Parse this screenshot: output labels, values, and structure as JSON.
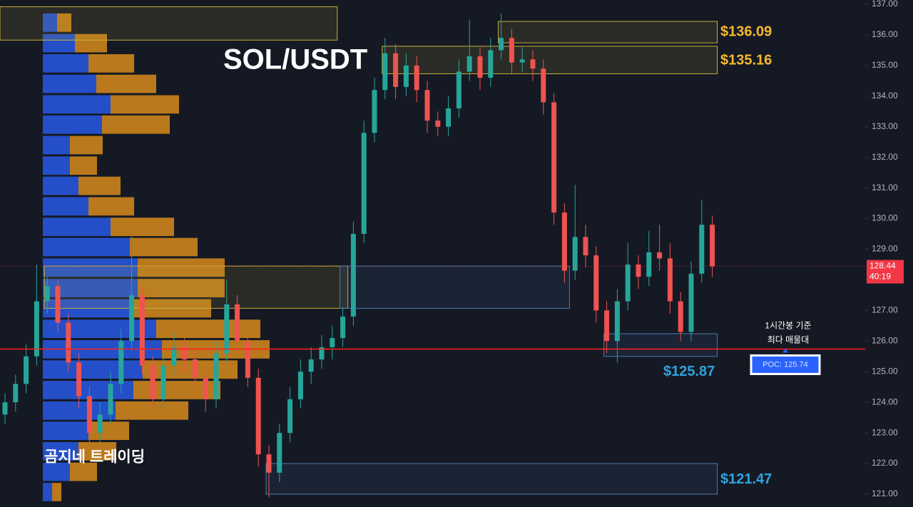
{
  "chart_data": {
    "type": "candlestick",
    "title": "SOL/USDT",
    "watermark": "곰지네 트레이딩",
    "ylim": [
      120.6,
      137.1
    ],
    "yticks": [
      {
        "value": 121,
        "label": "121.00"
      },
      {
        "value": 122,
        "label": "122.00"
      },
      {
        "value": 123,
        "label": "123.00"
      },
      {
        "value": 124,
        "label": "124.00"
      },
      {
        "value": 125,
        "label": "125.00"
      },
      {
        "value": 126,
        "label": "126.00"
      },
      {
        "value": 127,
        "label": "127.00"
      },
      {
        "value": 128,
        "label": "128.00"
      },
      {
        "value": 129,
        "label": "129.00"
      },
      {
        "value": 130,
        "label": "130.00"
      },
      {
        "value": 131,
        "label": "131.00"
      },
      {
        "value": 132,
        "label": "132.00"
      },
      {
        "value": 133,
        "label": "133.00"
      },
      {
        "value": 134,
        "label": "134.00"
      },
      {
        "value": 135,
        "label": "135.00"
      },
      {
        "value": 136,
        "label": "136.00"
      },
      {
        "value": 137,
        "label": "137.00"
      }
    ],
    "grid": false,
    "up_color": "#26a69a",
    "down_color": "#ef5350",
    "ohlc": [
      [
        123.6,
        124.3,
        123.3,
        124.0
      ],
      [
        124.0,
        124.9,
        123.7,
        124.6
      ],
      [
        124.6,
        125.9,
        124.3,
        125.5
      ],
      [
        125.5,
        128.5,
        125.2,
        127.3
      ],
      [
        127.3,
        128.1,
        126.9,
        127.8
      ],
      [
        127.8,
        128.0,
        126.3,
        126.6
      ],
      [
        126.6,
        126.9,
        125.0,
        125.3
      ],
      [
        125.3,
        125.6,
        123.8,
        124.2
      ],
      [
        124.2,
        124.5,
        122.6,
        123.0
      ],
      [
        123.0,
        124.0,
        122.7,
        123.6
      ],
      [
        123.6,
        125.0,
        123.3,
        124.6
      ],
      [
        124.6,
        126.4,
        124.3,
        126.0
      ],
      [
        126.0,
        129.6,
        125.7,
        127.5
      ],
      [
        127.5,
        127.8,
        124.9,
        125.2
      ],
      [
        125.2,
        125.5,
        123.8,
        124.1
      ],
      [
        124.1,
        125.6,
        123.8,
        125.2
      ],
      [
        125.2,
        126.3,
        124.9,
        125.8
      ],
      [
        125.8,
        126.1,
        125.0,
        125.4
      ],
      [
        125.4,
        125.7,
        124.4,
        124.8
      ],
      [
        124.8,
        125.1,
        123.7,
        124.1
      ],
      [
        124.1,
        126.0,
        123.8,
        125.6
      ],
      [
        125.6,
        128.0,
        125.3,
        127.2
      ],
      [
        127.2,
        127.5,
        125.7,
        126.0
      ],
      [
        126.0,
        126.3,
        124.5,
        124.8
      ],
      [
        124.8,
        125.1,
        121.9,
        122.3
      ],
      [
        122.3,
        122.6,
        120.9,
        121.7
      ],
      [
        121.7,
        123.3,
        121.4,
        123.0
      ],
      [
        123.0,
        124.5,
        122.7,
        124.1
      ],
      [
        124.1,
        125.4,
        123.8,
        125.0
      ],
      [
        125.0,
        125.8,
        124.6,
        125.4
      ],
      [
        125.4,
        126.2,
        125.1,
        125.8
      ],
      [
        125.8,
        126.5,
        125.4,
        126.1
      ],
      [
        126.1,
        127.1,
        125.8,
        126.8
      ],
      [
        126.8,
        129.9,
        126.5,
        129.5
      ],
      [
        129.5,
        133.2,
        129.2,
        132.8
      ],
      [
        132.8,
        134.6,
        132.5,
        134.2
      ],
      [
        134.2,
        135.9,
        133.9,
        135.4
      ],
      [
        135.4,
        135.7,
        133.9,
        134.3
      ],
      [
        134.3,
        135.4,
        134.0,
        135.0
      ],
      [
        135.0,
        135.3,
        133.8,
        134.2
      ],
      [
        134.2,
        134.5,
        132.8,
        133.2
      ],
      [
        133.2,
        133.5,
        132.7,
        133.0
      ],
      [
        133.0,
        134.0,
        132.7,
        133.6
      ],
      [
        133.6,
        135.2,
        133.3,
        134.8
      ],
      [
        134.8,
        136.5,
        134.5,
        135.3
      ],
      [
        135.3,
        135.6,
        134.2,
        134.6
      ],
      [
        134.6,
        135.9,
        134.3,
        135.5
      ],
      [
        135.5,
        136.7,
        135.2,
        135.9
      ],
      [
        135.9,
        136.2,
        134.7,
        135.1
      ],
      [
        135.1,
        135.6,
        134.8,
        135.2
      ],
      [
        135.2,
        135.5,
        134.5,
        134.9
      ],
      [
        134.9,
        135.2,
        133.4,
        133.8
      ],
      [
        133.8,
        134.1,
        129.8,
        130.2
      ],
      [
        130.2,
        130.5,
        127.9,
        128.3
      ],
      [
        128.3,
        131.1,
        128.0,
        129.4
      ],
      [
        129.4,
        129.8,
        128.4,
        128.8
      ],
      [
        128.8,
        129.1,
        126.6,
        127.0
      ],
      [
        127.0,
        127.3,
        125.6,
        126.0
      ],
      [
        126.0,
        127.7,
        125.3,
        127.3
      ],
      [
        127.3,
        129.2,
        127.0,
        128.5
      ],
      [
        128.5,
        128.8,
        127.7,
        128.1
      ],
      [
        128.1,
        129.6,
        127.8,
        128.9
      ],
      [
        128.9,
        129.8,
        128.3,
        128.7
      ],
      [
        128.7,
        129.2,
        126.9,
        127.3
      ],
      [
        127.3,
        127.6,
        126.0,
        126.3
      ],
      [
        126.3,
        128.6,
        126.0,
        128.2
      ],
      [
        128.2,
        130.6,
        127.9,
        129.8
      ],
      [
        129.8,
        130.1,
        128.1,
        128.44
      ]
    ],
    "volume_profile": {
      "buy_color": "#2962ff",
      "sell_color": "#f29a1a",
      "levels": [
        136.4,
        135.73,
        135.07,
        134.4,
        133.73,
        133.07,
        132.4,
        131.73,
        131.07,
        130.4,
        129.73,
        129.07,
        128.4,
        127.73,
        127.07,
        126.4,
        125.73,
        125.07,
        124.4,
        123.73,
        123.07,
        122.4,
        121.73,
        121.07
      ],
      "buy": [
        20,
        45,
        64,
        75,
        95,
        83,
        38,
        38,
        50,
        64,
        95,
        122,
        133,
        133,
        127,
        159,
        167,
        140,
        127,
        102,
        64,
        50,
        38,
        13
      ],
      "sell": [
        20,
        45,
        64,
        84,
        96,
        95,
        46,
        38,
        59,
        64,
        89,
        95,
        122,
        122,
        109,
        146,
        151,
        133,
        122,
        102,
        57,
        53,
        38,
        13
      ]
    },
    "zones": [
      {
        "low": 135.83,
        "high": 136.92,
        "start": 0,
        "end": 31,
        "color": "#c9b23a"
      },
      {
        "low": 135.74,
        "high": 136.44,
        "start": 47,
        "end": 67,
        "color": "#c9b23a",
        "price": 136.09,
        "price_label": "$136.09"
      },
      {
        "low": 134.73,
        "high": 135.63,
        "start": 36,
        "end": 67,
        "color": "#c9b23a",
        "price": 135.16,
        "price_label": "$135.16"
      },
      {
        "low": 127.07,
        "high": 128.45,
        "start": 4,
        "end": 32,
        "color": "#c9b23a"
      },
      {
        "low": 127.07,
        "high": 128.45,
        "start": 32,
        "end": 53,
        "color": "#4a79b0"
      },
      {
        "low": 125.5,
        "high": 126.24,
        "start": 57,
        "end": 67,
        "color": "#4a79b0",
        "price": 125.87,
        "price_label": "$125.87"
      },
      {
        "low": 121.0,
        "high": 122.0,
        "start": 25,
        "end": 67,
        "color": "#4a79b0",
        "price": 121.47,
        "price_label": "$121.47"
      }
    ],
    "poc": {
      "value": 125.74,
      "label": "POC: 125.74",
      "note": [
        "1시간봉 기준",
        "최다 매물대"
      ],
      "color": "#ff1f1f"
    },
    "last_price": {
      "value": 128.44,
      "label": "128.44",
      "countdown": "40:19",
      "color": "#f23645"
    }
  }
}
